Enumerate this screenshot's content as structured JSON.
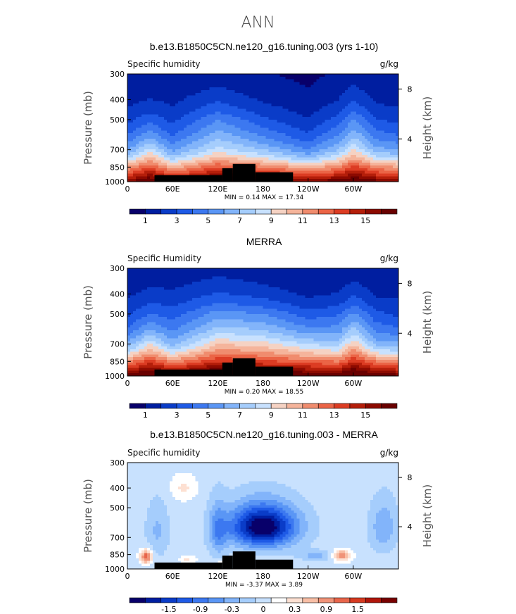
{
  "main_title": "ANN",
  "colors": {
    "full": [
      "#08006a",
      "#001ea0",
      "#0a3cc8",
      "#1e5ae6",
      "#3c78f0",
      "#5a96f5",
      "#82b4fa",
      "#a5cdfc",
      "#c8e1fe",
      "#f5d2c3",
      "#f5b49b",
      "#f08c6e",
      "#eb6446",
      "#dc3c23",
      "#b41e0a",
      "#8c0a00",
      "#690000"
    ],
    "diff": [
      "#08006a",
      "#001ea0",
      "#0a3cc8",
      "#1e5ae6",
      "#3c78f0",
      "#5a96f5",
      "#82b4fa",
      "#a5cdfc",
      "#c8e1fe",
      "#ffffff",
      "#fde0d2",
      "#f8bea5",
      "#f09378",
      "#e8654a",
      "#d63a20",
      "#b0160a",
      "#780000"
    ],
    "topography": "#000000"
  },
  "chart_data": [
    {
      "type": "heatmap",
      "title": "b.e13.B1850C5CN.ne120_g16.tuning.003 (yrs 1-10)",
      "variable_label": "Specific humidity",
      "units_label": "g/kg",
      "ylabel": "Pressure (mb)",
      "y2label": "Height (km)",
      "x_ticks": [
        "0",
        "60E",
        "120E",
        "180",
        "120W",
        "60W"
      ],
      "y_ticks": [
        "300",
        "400",
        "500",
        "700",
        "850",
        "1000"
      ],
      "y2_ticks": [
        "8",
        "4"
      ],
      "xlim": [
        0,
        360
      ],
      "ylim": [
        1000,
        300
      ],
      "min_max_text": "MIN =    0.14   MAX =   17.34",
      "colorbar_labels": [
        "1",
        "3",
        "5",
        "7",
        "9",
        "11",
        "13",
        "15"
      ],
      "kind": "full",
      "profiles": [
        {
          "p": 350,
          "lon": [
            0,
            30,
            60,
            120,
            180,
            240,
            280,
            300,
            330,
            360
          ],
          "q": [
            0.8,
            1.0,
            0.9,
            1.6,
            0.9,
            0.5,
            1.0,
            1.7,
            0.9,
            0.8
          ]
        },
        {
          "p": 500,
          "lon": [
            0,
            30,
            60,
            120,
            180,
            240,
            280,
            300,
            330,
            360
          ],
          "q": [
            2.2,
            3.2,
            2.2,
            4.5,
            2.8,
            1.6,
            3.0,
            4.6,
            2.6,
            2.2
          ]
        },
        {
          "p": 700,
          "lon": [
            0,
            30,
            60,
            120,
            180,
            240,
            280,
            300,
            330,
            360
          ],
          "q": [
            5.5,
            8.0,
            5.2,
            8.0,
            6.5,
            4.5,
            6.5,
            8.5,
            6.0,
            5.5
          ]
        },
        {
          "p": 850,
          "lon": [
            0,
            30,
            60,
            120,
            180,
            240,
            280,
            300,
            330,
            360
          ],
          "q": [
            10.5,
            12.5,
            10.0,
            12.5,
            11.5,
            10.0,
            11.0,
            13.0,
            11.0,
            10.5
          ]
        },
        {
          "p": 1000,
          "lon": [
            0,
            30,
            60,
            120,
            180,
            240,
            280,
            300,
            330,
            360
          ],
          "q": [
            15.5,
            17.0,
            15.5,
            17.3,
            16.5,
            15.5,
            16.5,
            17.0,
            16.0,
            15.5
          ]
        }
      ]
    },
    {
      "type": "heatmap",
      "title": "MERRA",
      "variable_label": "Specific Humidity",
      "units_label": "g/kg",
      "ylabel": "Pressure (mb)",
      "y2label": "Height (km)",
      "x_ticks": [
        "0",
        "60E",
        "120E",
        "180",
        "120W",
        "60W"
      ],
      "y_ticks": [
        "300",
        "400",
        "500",
        "700",
        "850",
        "1000"
      ],
      "y2_ticks": [
        "8",
        "4"
      ],
      "xlim": [
        0,
        360
      ],
      "ylim": [
        1000,
        300
      ],
      "min_max_text": "MIN =    0.20   MAX =   18.55",
      "colorbar_labels": [
        "1",
        "3",
        "5",
        "7",
        "9",
        "11",
        "13",
        "15"
      ],
      "kind": "full",
      "profiles": [
        {
          "p": 350,
          "lon": [
            0,
            30,
            60,
            120,
            180,
            240,
            280,
            300,
            330,
            360
          ],
          "q": [
            0.9,
            1.3,
            1.2,
            1.8,
            1.4,
            0.8,
            1.0,
            1.6,
            0.9,
            0.9
          ]
        },
        {
          "p": 500,
          "lon": [
            0,
            30,
            60,
            120,
            180,
            240,
            280,
            300,
            330,
            360
          ],
          "q": [
            2.3,
            3.6,
            3.0,
            5.0,
            4.5,
            3.0,
            3.4,
            4.8,
            2.8,
            2.3
          ]
        },
        {
          "p": 700,
          "lon": [
            0,
            30,
            60,
            120,
            180,
            240,
            280,
            300,
            330,
            360
          ],
          "q": [
            5.8,
            8.5,
            6.0,
            9.5,
            9.0,
            7.5,
            7.0,
            9.5,
            6.2,
            5.8
          ]
        },
        {
          "p": 850,
          "lon": [
            0,
            30,
            60,
            120,
            180,
            240,
            280,
            300,
            330,
            360
          ],
          "q": [
            11.0,
            13.0,
            11.0,
            13.5,
            12.8,
            12.0,
            11.5,
            13.5,
            11.5,
            11.0
          ]
        },
        {
          "p": 1000,
          "lon": [
            0,
            30,
            60,
            120,
            180,
            240,
            280,
            300,
            330,
            360
          ],
          "q": [
            16.0,
            18.0,
            16.5,
            18.5,
            17.5,
            17.0,
            16.5,
            18.0,
            16.5,
            16.0
          ]
        }
      ]
    },
    {
      "type": "heatmap",
      "title": "b.e13.B1850C5CN.ne120_g16.tuning.003 - MERRA",
      "variable_label": "Specific humidity",
      "units_label": "g/kg",
      "ylabel": "Pressure (mb)",
      "y2label": "Height (km)",
      "x_ticks": [
        "0",
        "60E",
        "120E",
        "180",
        "120W",
        "60W"
      ],
      "y_ticks": [
        "300",
        "400",
        "500",
        "700",
        "850",
        "1000"
      ],
      "y2_ticks": [
        "8",
        "4"
      ],
      "xlim": [
        0,
        360
      ],
      "ylim": [
        1000,
        300
      ],
      "min_max_text": "MIN =   -3.37   MAX =    3.89",
      "colorbar_labels": [
        "-1.5",
        "-0.9",
        "-0.3",
        "0",
        "0.3",
        "0.9",
        "1.5"
      ],
      "kind": "diff",
      "features": [
        {
          "lon": 180,
          "p": 620,
          "amp": -2.6,
          "sx": 45,
          "sp": 150
        },
        {
          "lon": 75,
          "p": 400,
          "amp": 0.5,
          "sx": 18,
          "sp": 60
        },
        {
          "lon": 25,
          "p": 870,
          "amp": 1.6,
          "sx": 8,
          "sp": 70
        },
        {
          "lon": 80,
          "p": 900,
          "amp": 0.5,
          "sx": 12,
          "sp": 40
        },
        {
          "lon": 125,
          "p": 930,
          "amp": 0.5,
          "sx": 6,
          "sp": 40
        },
        {
          "lon": 285,
          "p": 860,
          "amp": 1.2,
          "sx": 12,
          "sp": 60
        },
        {
          "lon": 250,
          "p": 860,
          "amp": -0.6,
          "sx": 20,
          "sp": 50
        },
        {
          "lon": 120,
          "p": 650,
          "amp": -0.8,
          "sx": 12,
          "sp": 200
        },
        {
          "lon": 340,
          "p": 620,
          "amp": -0.7,
          "sx": 18,
          "sp": 180
        },
        {
          "lon": 40,
          "p": 650,
          "amp": -0.5,
          "sx": 15,
          "sp": 200
        }
      ]
    }
  ]
}
